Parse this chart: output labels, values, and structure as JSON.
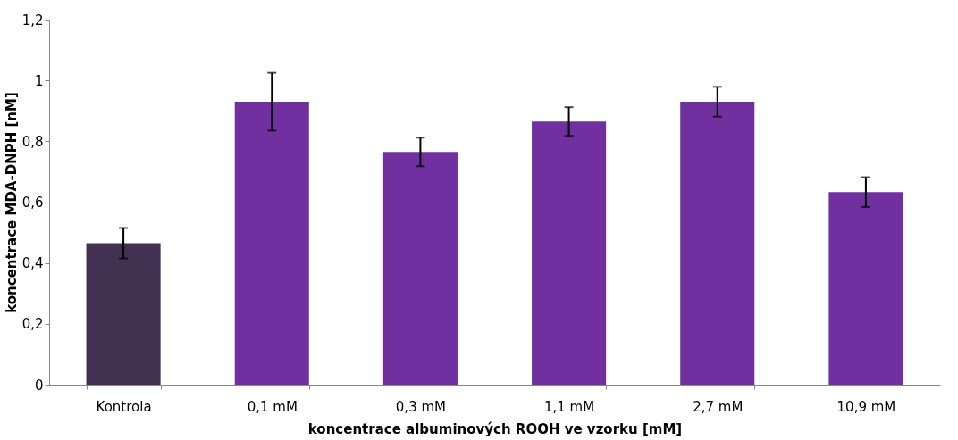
{
  "chart_data": {
    "type": "bar",
    "xlabel": "koncentrace albuminových ROOH ve vzorku [mM]",
    "ylabel": "koncentrace MDA-DNPH [nM]",
    "categories": [
      "Kontrola",
      "0,1 mM",
      "0,3 mM",
      "1,1 mM",
      "2,7 mM",
      "10,9 mM"
    ],
    "values": [
      0.465,
      0.93,
      0.765,
      0.865,
      0.93,
      0.633
    ],
    "colors": [
      "#433152",
      "#7030a0",
      "#7030a0",
      "#7030a0",
      "#7030a0",
      "#7030a0"
    ],
    "errors": [
      0.05,
      0.095,
      0.047,
      0.047,
      0.049,
      0.049
    ],
    "ylim": [
      0,
      1.2
    ],
    "yticks": [
      {
        "value": 0,
        "label": "0"
      },
      {
        "value": 0.2,
        "label": "0,2"
      },
      {
        "value": 0.4,
        "label": "0,4"
      },
      {
        "value": 0.6,
        "label": "0,6"
      },
      {
        "value": 0.8,
        "label": "0,8"
      },
      {
        "value": 1,
        "label": "1"
      },
      {
        "value": 1.2,
        "label": "1,2"
      }
    ],
    "grid": false
  }
}
